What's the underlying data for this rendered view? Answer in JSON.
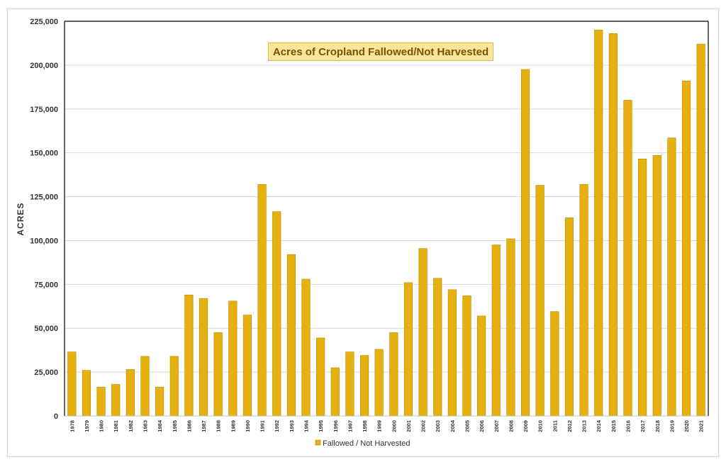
{
  "chart_data": {
    "type": "bar",
    "title": "Acres of Cropland Fallowed/Not Harvested",
    "xlabel": "",
    "ylabel": "ACRES",
    "ylim": [
      0,
      225000
    ],
    "yticks": [
      "0",
      "25,000",
      "50,000",
      "75,000",
      "100,000",
      "125,000",
      "150,000",
      "175,000",
      "200,000",
      "225,000"
    ],
    "grid": true,
    "legend_position": "bottom",
    "color": "#e6b00f",
    "categories": [
      "1978",
      "1979",
      "1980",
      "1981",
      "1982",
      "1983",
      "1984",
      "1985",
      "1986",
      "1987",
      "1988",
      "1989",
      "1990",
      "1991",
      "1992",
      "1993",
      "1994",
      "1995",
      "1996",
      "1997",
      "1998",
      "1999",
      "2000",
      "2001",
      "2002",
      "2003",
      "2004",
      "2005",
      "2006",
      "2007",
      "2008",
      "2009",
      "2010",
      "2011",
      "2012",
      "2013",
      "2014",
      "2015",
      "2016",
      "2017",
      "2018",
      "2019",
      "2020",
      "2021"
    ],
    "series": [
      {
        "name": "Fallowed / Not Harvested",
        "values": [
          36500,
          26000,
          16500,
          18000,
          26500,
          34000,
          16500,
          34000,
          69000,
          67000,
          47500,
          65500,
          57500,
          132000,
          116500,
          92000,
          78000,
          44500,
          27500,
          36500,
          34500,
          38000,
          47500,
          76000,
          95500,
          78500,
          72000,
          68500,
          57000,
          97500,
          101000,
          197500,
          131500,
          59500,
          113000,
          132000,
          220000,
          218000,
          180000,
          146500,
          148500,
          158500,
          191000,
          212000
        ]
      }
    ]
  }
}
